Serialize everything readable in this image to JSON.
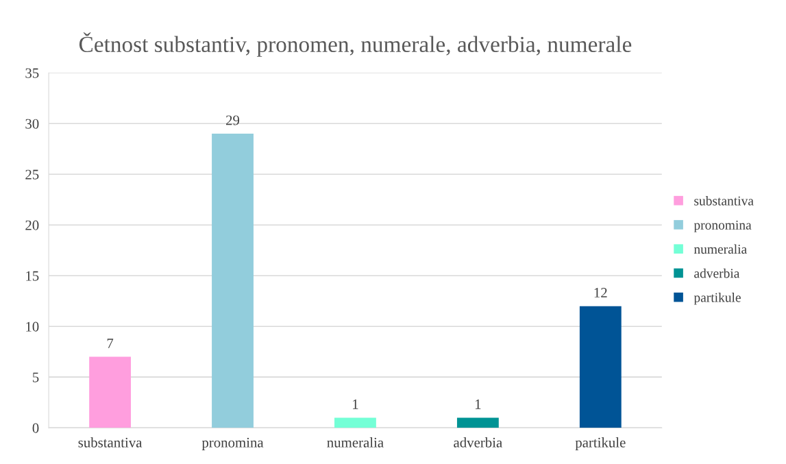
{
  "chart_data": {
    "type": "bar",
    "title": "Četnost substantiv, pronomen, numerale, adverbia, numerale",
    "categories": [
      "substantiva",
      "pronomina",
      "numeralia",
      "adverbia",
      "partikule"
    ],
    "series": [
      {
        "name": "substantiva",
        "color": "#ff9ede",
        "values": [
          7,
          null,
          null,
          null,
          null
        ]
      },
      {
        "name": "pronomina",
        "color": "#92cddc",
        "values": [
          null,
          29,
          null,
          null,
          null
        ]
      },
      {
        "name": "numeralia",
        "color": "#74ffd6",
        "values": [
          null,
          null,
          1,
          null,
          null
        ]
      },
      {
        "name": "adverbia",
        "color": "#009394",
        "values": [
          null,
          null,
          null,
          1,
          null
        ]
      },
      {
        "name": "partikule",
        "color": "#005496",
        "values": [
          null,
          null,
          null,
          null,
          12
        ]
      }
    ],
    "ylim": [
      0,
      35
    ],
    "yticks": [
      0,
      5,
      10,
      15,
      20,
      25,
      30,
      35
    ],
    "grid": "y",
    "legend": "right",
    "data_labels": true
  }
}
